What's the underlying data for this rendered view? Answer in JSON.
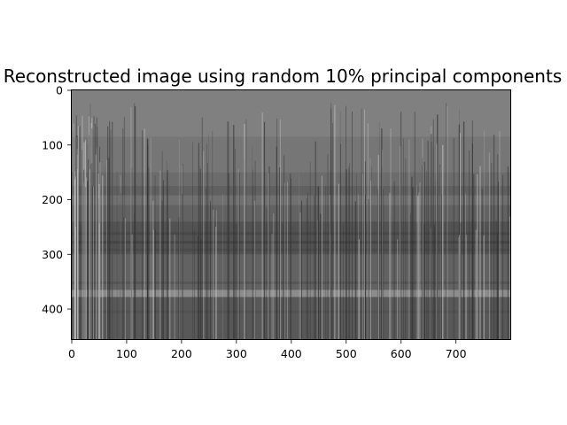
{
  "chart_data": {
    "type": "heatmap",
    "title": "Reconstructed image using random 10% principal components",
    "xlabel": "",
    "ylabel": "",
    "xlim": [
      0,
      799
    ],
    "ylim": [
      455,
      0
    ],
    "colormap": "grayscale",
    "grid": false,
    "x_ticks": [
      0,
      100,
      200,
      300,
      400,
      500,
      600,
      700
    ],
    "y_ticks": [
      0,
      100,
      200,
      300,
      400
    ],
    "image_rows": [
      {
        "from": 0,
        "to": 85,
        "gray": 128
      },
      {
        "from": 85,
        "to": 150,
        "gray": 118
      },
      {
        "from": 150,
        "to": 175,
        "gray": 108
      },
      {
        "from": 175,
        "to": 192,
        "gray": 96
      },
      {
        "from": 192,
        "to": 210,
        "gray": 112
      },
      {
        "from": 210,
        "to": 240,
        "gray": 98
      },
      {
        "from": 240,
        "to": 300,
        "gray": 82
      },
      {
        "from": 300,
        "to": 365,
        "gray": 98
      },
      {
        "from": 365,
        "to": 378,
        "gray": 140
      },
      {
        "from": 378,
        "to": 455,
        "gray": 88
      }
    ],
    "image_bands": [
      {
        "y": 262,
        "gray": 70
      },
      {
        "y": 278,
        "gray": 66
      },
      {
        "y": 292,
        "gray": 74
      },
      {
        "y": 352,
        "gray": 84
      },
      {
        "y": 405,
        "gray": 80
      }
    ]
  }
}
